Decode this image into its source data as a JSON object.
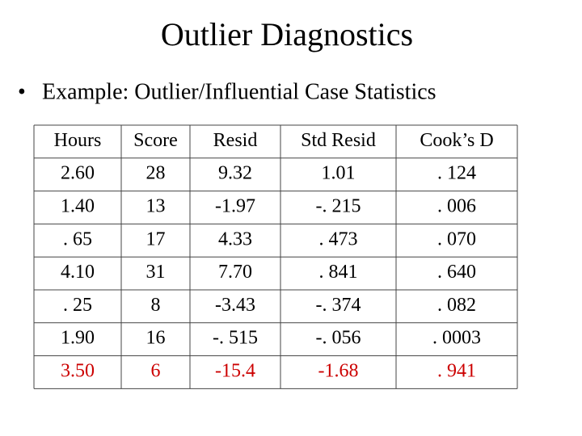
{
  "header": {
    "title": "Outlier Diagnostics"
  },
  "bullet": "Example:  Outlier/Influential Case Statistics",
  "table": {
    "columns": [
      "Hours",
      "Score",
      "Resid",
      "Std Resid",
      "Cook’s D"
    ],
    "rows": [
      [
        "2.60",
        "28",
        "9.32",
        "1.01",
        ". 124"
      ],
      [
        "1.40",
        "13",
        "-1.97",
        "-. 215",
        ". 006"
      ],
      [
        ". 65",
        "17",
        "4.33",
        ". 473",
        ". 070"
      ],
      [
        "4.10",
        "31",
        "7.70",
        ". 841",
        ". 640"
      ],
      [
        ". 25",
        "8",
        "-3.43",
        "-. 374",
        ". 082"
      ],
      [
        "1.90",
        "16",
        "-. 515",
        "-. 056",
        ". 0003"
      ],
      [
        "3.50",
        "6",
        "-15.4",
        "-1.68",
        ". 941"
      ]
    ],
    "highlight": {
      "row": 6,
      "color": "#cc0000"
    }
  }
}
